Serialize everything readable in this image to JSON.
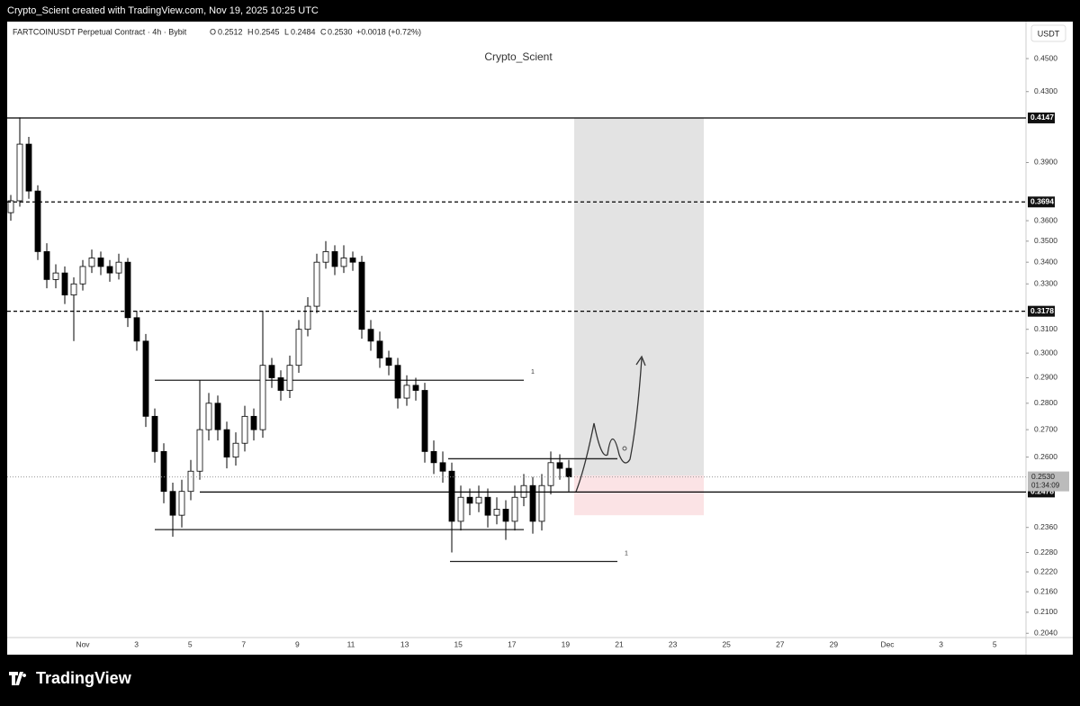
{
  "header": {
    "caption": "Crypto_Scient created with TradingView.com, Nov 19, 2025 10:25 UTC"
  },
  "legend": {
    "symbol": "FARTCOINUSDT Perpetual Contract · 4h · Bybit",
    "o_key": "O",
    "o": "0.2512",
    "h_key": "H",
    "h": "0.2545",
    "l_key": "L",
    "l": "0.2484",
    "c_key": "C",
    "c": "0.2530",
    "change": "+0.0018 (+0.72%)"
  },
  "watermark": "Crypto_Scient",
  "currency": "USDT",
  "footer": {
    "brand": "TradingView"
  },
  "chart_data": {
    "type": "candlestick",
    "log_scale": true,
    "grid": false,
    "up_color": "#ffffff",
    "down_color": "#000000",
    "ylim": [
      0.2023,
      0.4735
    ],
    "yticks": [
      {
        "value": 0.45,
        "label": "0.4500"
      },
      {
        "value": 0.43,
        "label": "0.4300"
      },
      {
        "value": 0.39,
        "label": "0.3900"
      },
      {
        "value": 0.36,
        "label": "0.3600"
      },
      {
        "value": 0.35,
        "label": "0.3500"
      },
      {
        "value": 0.34,
        "label": "0.3400"
      },
      {
        "value": 0.33,
        "label": "0.3300"
      },
      {
        "value": 0.31,
        "label": "0.3100"
      },
      {
        "value": 0.3,
        "label": "0.3000"
      },
      {
        "value": 0.29,
        "label": "0.2900"
      },
      {
        "value": 0.28,
        "label": "0.2800"
      },
      {
        "value": 0.27,
        "label": "0.2700"
      },
      {
        "value": 0.26,
        "label": "0.2600"
      },
      {
        "value": 0.236,
        "label": "0.2360"
      },
      {
        "value": 0.228,
        "label": "0.2280"
      },
      {
        "value": 0.222,
        "label": "0.2220"
      },
      {
        "value": 0.216,
        "label": "0.2160"
      },
      {
        "value": 0.21,
        "label": "0.2100"
      },
      {
        "value": 0.204,
        "label": "0.2040"
      }
    ],
    "xtick_labels": [
      "Nov",
      "3",
      "5",
      "7",
      "9",
      "11",
      "13",
      "15",
      "17",
      "19",
      "21",
      "23",
      "25",
      "27",
      "29",
      "Dec",
      "3",
      "5"
    ],
    "open": [
      0.364,
      0.37,
      0.4,
      0.375,
      0.345,
      0.332,
      0.335,
      0.325,
      0.33,
      0.338,
      0.342,
      0.338,
      0.335,
      0.34,
      0.315,
      0.305,
      0.275,
      0.262,
      0.248,
      0.24,
      0.248,
      0.255,
      0.27,
      0.28,
      0.27,
      0.26,
      0.265,
      0.275,
      0.27,
      0.295,
      0.29,
      0.285,
      0.295,
      0.31,
      0.32,
      0.34,
      0.345,
      0.338,
      0.342,
      0.34,
      0.31,
      0.305,
      0.298,
      0.295,
      0.282,
      0.287,
      0.285,
      0.262,
      0.258,
      0.255,
      0.238,
      0.246,
      0.244,
      0.246,
      0.24,
      0.242,
      0.238,
      0.246,
      0.25,
      0.238,
      0.25,
      0.258,
      0.256
    ],
    "high": [
      0.373,
      0.415,
      0.404,
      0.378,
      0.349,
      0.339,
      0.338,
      0.333,
      0.341,
      0.346,
      0.345,
      0.341,
      0.344,
      0.342,
      0.318,
      0.308,
      0.278,
      0.265,
      0.251,
      0.252,
      0.259,
      0.289,
      0.284,
      0.283,
      0.273,
      0.269,
      0.279,
      0.278,
      0.318,
      0.298,
      0.293,
      0.299,
      0.314,
      0.324,
      0.344,
      0.35,
      0.348,
      0.348,
      0.345,
      0.343,
      0.314,
      0.309,
      0.301,
      0.298,
      0.291,
      0.29,
      0.288,
      0.266,
      0.262,
      0.258,
      0.25,
      0.249,
      0.25,
      0.249,
      0.246,
      0.245,
      0.25,
      0.254,
      0.253,
      0.254,
      0.262,
      0.261,
      0.259
    ],
    "low": [
      0.36,
      0.367,
      0.371,
      0.341,
      0.328,
      0.328,
      0.321,
      0.305,
      0.327,
      0.335,
      0.334,
      0.331,
      0.332,
      0.311,
      0.301,
      0.271,
      0.258,
      0.244,
      0.233,
      0.236,
      0.245,
      0.252,
      0.266,
      0.266,
      0.256,
      0.257,
      0.262,
      0.266,
      0.267,
      0.286,
      0.281,
      0.282,
      0.292,
      0.307,
      0.317,
      0.337,
      0.334,
      0.335,
      0.336,
      0.306,
      0.301,
      0.294,
      0.291,
      0.278,
      0.279,
      0.281,
      0.258,
      0.254,
      0.251,
      0.228,
      0.235,
      0.24,
      0.241,
      0.236,
      0.237,
      0.232,
      0.235,
      0.243,
      0.234,
      0.235,
      0.247,
      0.252,
      0.248
    ],
    "close": [
      0.37,
      0.4,
      0.375,
      0.345,
      0.332,
      0.335,
      0.325,
      0.33,
      0.338,
      0.342,
      0.338,
      0.335,
      0.34,
      0.315,
      0.305,
      0.275,
      0.262,
      0.248,
      0.24,
      0.248,
      0.255,
      0.27,
      0.28,
      0.27,
      0.26,
      0.265,
      0.275,
      0.27,
      0.295,
      0.29,
      0.285,
      0.295,
      0.31,
      0.32,
      0.34,
      0.345,
      0.338,
      0.342,
      0.34,
      0.31,
      0.305,
      0.298,
      0.295,
      0.282,
      0.287,
      0.285,
      0.262,
      0.258,
      0.255,
      0.238,
      0.246,
      0.244,
      0.246,
      0.24,
      0.242,
      0.238,
      0.246,
      0.25,
      0.238,
      0.25,
      0.258,
      0.256,
      0.253
    ],
    "levels": [
      {
        "value": 0.4147,
        "label": "0.4147",
        "dashed": false
      },
      {
        "value": 0.3694,
        "label": "0.3694",
        "dashed": true
      },
      {
        "value": 0.3178,
        "label": "0.3178",
        "dashed": true
      },
      {
        "value": 0.2478,
        "label": "0.2478",
        "dashed": false
      }
    ],
    "current": {
      "value": 0.253,
      "label": "0.2530",
      "countdown": "01:34:09"
    },
    "drawings": [
      {
        "value": 0.289,
        "note": "1"
      },
      {
        "value": 0.2353
      },
      {
        "value": 0.2594
      },
      {
        "value": 0.2252,
        "note": "1"
      }
    ],
    "zones": [
      {
        "top": 0.4147,
        "bottom": 0.2535,
        "color": "#e3e3e3"
      },
      {
        "top": 0.2535,
        "bottom": 0.24,
        "color": "#fbe3e5"
      }
    ]
  }
}
